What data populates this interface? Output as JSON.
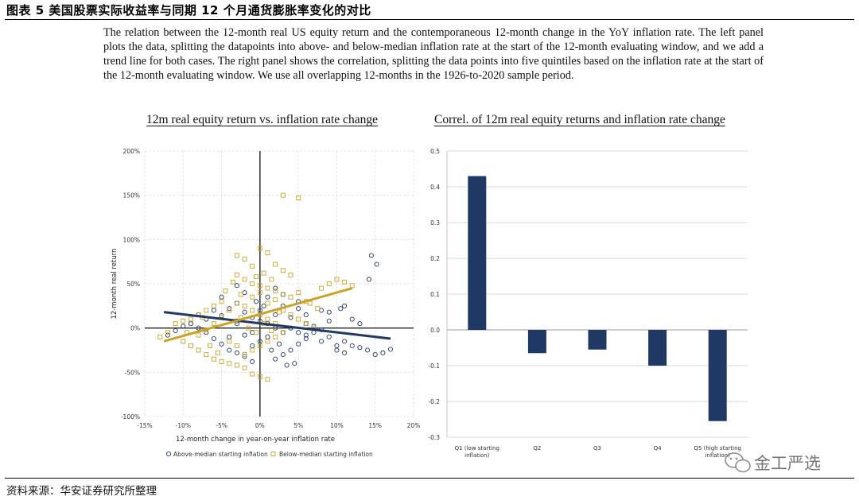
{
  "figure_title": "图表 5 美国股票实际收益率与同期 12 个月通货膨胀率变化的对比",
  "description": "The relation between the 12-month real US equity return and the contemporaneous 12-month change in the YoY inflation rate. The left panel plots the data, splitting the datapoints into above- and below-median inflation rate at the start of the 12-month evaluating window, and we add a trend line for both cases. The right panel shows the correlation, splitting the data points into five quintiles based on the inflation rate at the start of the 12-month evaluating window. We use all overlapping 12-months in the 1926-to-2020 sample period.",
  "source": "资料来源：华安证券研究所整理",
  "watermark": "金工严选",
  "colors": {
    "navy": "#1f3864",
    "gold": "#c9a227",
    "grid": "#d9d9d9"
  },
  "chart_data": [
    {
      "type": "scatter",
      "title": "12m real equity return vs. inflation rate change",
      "xlabel": "12-month change in year-on-year inflation rate",
      "ylabel": "12-month real return",
      "xlim": [
        -15,
        20
      ],
      "ylim": [
        -100,
        200
      ],
      "x_ticks": [
        -15,
        -10,
        -5,
        0,
        5,
        10,
        15,
        20
      ],
      "x_tick_labels": [
        "-15%",
        "-10%",
        "-5%",
        "0%",
        "5%",
        "10%",
        "15%",
        "20%"
      ],
      "y_ticks": [
        -100,
        -50,
        0,
        50,
        100,
        150,
        200
      ],
      "y_tick_labels": [
        "-100%",
        "-50%",
        "0%",
        "50%",
        "100%",
        "150%",
        "200%"
      ],
      "legend_position": "bottom",
      "series": [
        {
          "name": "Above-median starting inflation",
          "color": "#1f3864",
          "marker": "circle",
          "trend_line": [
            [
              -12.5,
              18
            ],
            [
              17,
              -12
            ]
          ],
          "points": [
            [
              14.5,
              82
            ],
            [
              15.2,
              72
            ],
            [
              14.2,
              55
            ],
            [
              -3,
              48
            ],
            [
              -2,
              40
            ],
            [
              2,
              45
            ],
            [
              1,
              35
            ],
            [
              3,
              38
            ],
            [
              10.5,
              22
            ],
            [
              11,
              25
            ],
            [
              9,
              18
            ],
            [
              8,
              20
            ],
            [
              6,
              15
            ],
            [
              4,
              12
            ],
            [
              5,
              22
            ],
            [
              7,
              -5
            ],
            [
              9,
              -10
            ],
            [
              11,
              -15
            ],
            [
              12,
              -20
            ],
            [
              14,
              -25
            ],
            [
              15,
              -30
            ],
            [
              16,
              -28
            ],
            [
              17,
              -24
            ],
            [
              10,
              -20
            ],
            [
              8,
              -15
            ],
            [
              6,
              -12
            ],
            [
              5,
              -18
            ],
            [
              4,
              -25
            ],
            [
              3,
              -30
            ],
            [
              2,
              -35
            ],
            [
              4.5,
              -40
            ],
            [
              3.5,
              -42
            ],
            [
              -1,
              -38
            ],
            [
              -2,
              -32
            ],
            [
              -3,
              -28
            ],
            [
              -4,
              -25
            ],
            [
              -5,
              -18
            ],
            [
              -6,
              -12
            ],
            [
              -7,
              -5
            ],
            [
              -8,
              0
            ],
            [
              -9,
              5
            ],
            [
              -10,
              2
            ],
            [
              -11,
              -3
            ],
            [
              -12,
              -8
            ],
            [
              -7,
              10
            ],
            [
              -5,
              14
            ],
            [
              -4,
              22
            ],
            [
              -3,
              28
            ],
            [
              -2,
              18
            ],
            [
              -1,
              12
            ],
            [
              0,
              8
            ],
            [
              1,
              5
            ],
            [
              2,
              0
            ],
            [
              3,
              -5
            ],
            [
              1,
              -10
            ],
            [
              0,
              -15
            ],
            [
              -1,
              -20
            ],
            [
              -2,
              -8
            ],
            [
              -3,
              5
            ],
            [
              2,
              15
            ],
            [
              3,
              25
            ],
            [
              5,
              30
            ],
            [
              6,
              5
            ],
            [
              7,
              2
            ],
            [
              8,
              -2
            ],
            [
              12,
              10
            ],
            [
              13,
              5
            ],
            [
              9,
              8
            ],
            [
              -4,
              -10
            ],
            [
              -6,
              20
            ],
            [
              -8,
              15
            ],
            [
              1.5,
              -25
            ],
            [
              2.5,
              -18
            ],
            [
              0.5,
              25
            ],
            [
              -0.5,
              30
            ],
            [
              4,
              0
            ],
            [
              5,
              -5
            ],
            [
              6,
              -8
            ],
            [
              10,
              -25
            ],
            [
              11,
              -28
            ],
            [
              13,
              -22
            ],
            [
              -5,
              35
            ],
            [
              -3,
              8
            ],
            [
              -1,
              -5
            ],
            [
              0,
              20
            ]
          ]
        },
        {
          "name": "Below-median starting inflation",
          "color": "#c9a227",
          "marker": "square",
          "trend_line": [
            [
              -12.5,
              -15
            ],
            [
              12,
              45
            ]
          ],
          "points": [
            [
              3,
              150
            ],
            [
              5,
              147
            ],
            [
              -3,
              82
            ],
            [
              -2,
              78
            ],
            [
              0,
              90
            ],
            [
              1,
              85
            ],
            [
              -1,
              70
            ],
            [
              2,
              72
            ],
            [
              3,
              65
            ],
            [
              4,
              60
            ],
            [
              -3,
              60
            ],
            [
              -2,
              55
            ],
            [
              -1,
              50
            ],
            [
              0,
              48
            ],
            [
              1,
              45
            ],
            [
              2,
              42
            ],
            [
              3,
              38
            ],
            [
              4,
              35
            ],
            [
              5,
              40
            ],
            [
              6,
              30
            ],
            [
              8,
              45
            ],
            [
              9,
              50
            ],
            [
              10,
              55
            ],
            [
              11,
              52
            ],
            [
              12,
              48
            ],
            [
              -5,
              30
            ],
            [
              -6,
              25
            ],
            [
              -7,
              20
            ],
            [
              -8,
              15
            ],
            [
              -9,
              10
            ],
            [
              -10,
              8
            ],
            [
              -11,
              5
            ],
            [
              -12,
              -5
            ],
            [
              -13,
              -10
            ],
            [
              -10,
              -15
            ],
            [
              -9,
              -20
            ],
            [
              -8,
              -25
            ],
            [
              -7,
              -30
            ],
            [
              -6,
              -35
            ],
            [
              -5,
              -38
            ],
            [
              -4,
              -40
            ],
            [
              -3,
              -42
            ],
            [
              -2,
              -45
            ],
            [
              -1,
              -52
            ],
            [
              0,
              -55
            ],
            [
              1,
              -58
            ],
            [
              -2,
              -30
            ],
            [
              -1,
              -25
            ],
            [
              0,
              -20
            ],
            [
              1,
              -15
            ],
            [
              2,
              -10
            ],
            [
              3,
              -5
            ],
            [
              2,
              5
            ],
            [
              1,
              10
            ],
            [
              0,
              15
            ],
            [
              -1,
              20
            ],
            [
              -2,
              25
            ],
            [
              -3,
              28
            ],
            [
              -4,
              20
            ],
            [
              -5,
              12
            ],
            [
              -6,
              5
            ],
            [
              -7,
              -2
            ],
            [
              -8,
              -8
            ],
            [
              -4,
              -15
            ],
            [
              -3,
              -20
            ],
            [
              3,
              20
            ],
            [
              4,
              15
            ],
            [
              5,
              10
            ],
            [
              6,
              5
            ],
            [
              7,
              0
            ],
            [
              -1,
              35
            ],
            [
              0,
              40
            ],
            [
              1,
              28
            ],
            [
              2,
              32
            ],
            [
              0.5,
              5
            ],
            [
              -0.5,
              -5
            ],
            [
              -1.5,
              0
            ],
            [
              1.5,
              -3
            ],
            [
              -2.5,
              12
            ],
            [
              2.5,
              18
            ],
            [
              -4.5,
              42
            ],
            [
              -3.5,
              52
            ],
            [
              -2.5,
              38
            ],
            [
              -0.5,
              58
            ],
            [
              0.5,
              62
            ],
            [
              1.5,
              55
            ],
            [
              -6.5,
              -20
            ],
            [
              -5.5,
              -28
            ],
            [
              -7.5,
              12
            ],
            [
              -9.5,
              -5
            ],
            [
              6.5,
              28
            ],
            [
              7.5,
              22
            ]
          ]
        }
      ]
    },
    {
      "type": "bar",
      "title": "Correl. of 12m real equity returns and inflation rate change",
      "categories": [
        "Q1 (low starting inflation)",
        "Q2",
        "Q3",
        "Q4",
        "Q5 (high starting inflation)"
      ],
      "category_labels": [
        "Q1 (low starting\ninflation)",
        "Q2",
        "Q3",
        "Q4",
        "Q5 (high starting\ninflation)"
      ],
      "values": [
        0.43,
        -0.065,
        -0.055,
        -0.1,
        -0.255
      ],
      "ylim": [
        -0.3,
        0.5
      ],
      "y_ticks": [
        -0.3,
        -0.2,
        -0.1,
        0.0,
        0.1,
        0.2,
        0.3,
        0.4,
        0.5
      ],
      "y_tick_labels": [
        "-0.3",
        "-0.2",
        "-0.1",
        "0.0",
        "0.1",
        "0.2",
        "0.3",
        "0.4",
        "0.5"
      ],
      "color": "#1f3864",
      "grid": true
    }
  ]
}
